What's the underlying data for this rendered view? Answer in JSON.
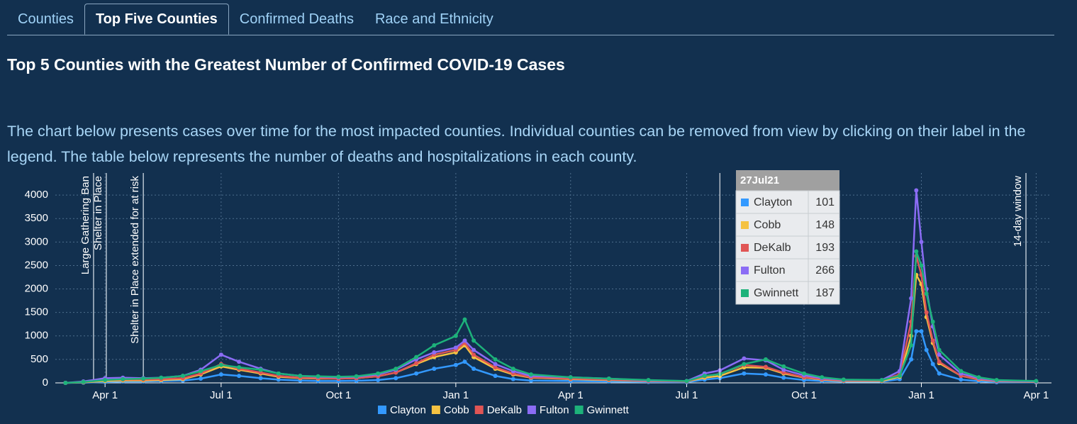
{
  "tabs": [
    "Counties",
    "Top Five Counties",
    "Confirmed Deaths",
    "Race and Ethnicity"
  ],
  "active_tab": 1,
  "heading": "Top 5 Counties with the Greatest Number of Confirmed COVID-19 Cases",
  "description": "The chart below presents cases over time for the most impacted counties. Individual counties can be removed from view by clicking on their label in the legend. The table below represents the number of deaths and hospitalizations in each county.",
  "chart_data": {
    "type": "line",
    "x": [
      "2020-03-01",
      "2020-03-15",
      "2020-04-01",
      "2020-04-15",
      "2020-05-01",
      "2020-05-15",
      "2020-06-01",
      "2020-06-15",
      "2020-07-01",
      "2020-07-15",
      "2020-08-01",
      "2020-08-15",
      "2020-09-01",
      "2020-09-15",
      "2020-10-01",
      "2020-10-15",
      "2020-11-01",
      "2020-11-15",
      "2020-12-01",
      "2020-12-15",
      "2021-01-01",
      "2021-01-08",
      "2021-01-15",
      "2021-02-01",
      "2021-02-15",
      "2021-03-01",
      "2021-04-01",
      "2021-05-01",
      "2021-06-01",
      "2021-07-01",
      "2021-07-15",
      "2021-07-27",
      "2021-08-15",
      "2021-09-01",
      "2021-09-15",
      "2021-10-01",
      "2021-10-15",
      "2021-11-01",
      "2021-12-01",
      "2021-12-15",
      "2021-12-24",
      "2021-12-28",
      "2022-01-01",
      "2022-01-05",
      "2022-01-10",
      "2022-01-15",
      "2022-02-01",
      "2022-02-15",
      "2022-03-01",
      "2022-04-01"
    ],
    "series": [
      {
        "name": "Clayton",
        "color": "#3399ff",
        "values": [
          0,
          5,
          20,
          30,
          30,
          40,
          50,
          90,
          180,
          150,
          100,
          70,
          50,
          40,
          40,
          45,
          60,
          100,
          200,
          300,
          380,
          450,
          300,
          150,
          80,
          50,
          40,
          30,
          20,
          15,
          70,
          101,
          200,
          180,
          110,
          60,
          40,
          25,
          25,
          80,
          500,
          1100,
          1100,
          700,
          400,
          200,
          70,
          35,
          15,
          10
        ]
      },
      {
        "name": "Cobb",
        "color": "#f5c242",
        "values": [
          0,
          10,
          40,
          50,
          50,
          60,
          80,
          180,
          350,
          280,
          200,
          130,
          100,
          90,
          90,
          100,
          140,
          220,
          400,
          550,
          650,
          800,
          550,
          300,
          180,
          110,
          80,
          60,
          35,
          30,
          110,
          148,
          330,
          320,
          200,
          110,
          70,
          40,
          40,
          130,
          1000,
          2300,
          2100,
          1400,
          850,
          420,
          150,
          70,
          35,
          20
        ]
      },
      {
        "name": "DeKalb",
        "color": "#e05555",
        "values": [
          0,
          15,
          60,
          70,
          70,
          80,
          100,
          200,
          400,
          300,
          220,
          150,
          110,
          100,
          90,
          100,
          140,
          220,
          420,
          600,
          700,
          850,
          600,
          330,
          200,
          120,
          90,
          70,
          40,
          30,
          140,
          193,
          380,
          340,
          220,
          120,
          80,
          50,
          50,
          180,
          1300,
          2700,
          2300,
          1500,
          900,
          450,
          150,
          80,
          40,
          25
        ]
      },
      {
        "name": "Fulton",
        "color": "#8b6cf5",
        "values": [
          0,
          30,
          100,
          110,
          100,
          110,
          150,
          280,
          600,
          450,
          300,
          200,
          150,
          130,
          120,
          130,
          180,
          280,
          500,
          650,
          750,
          900,
          700,
          400,
          250,
          150,
          120,
          90,
          50,
          40,
          200,
          266,
          520,
          480,
          280,
          160,
          100,
          60,
          60,
          250,
          1800,
          4100,
          3000,
          2000,
          1200,
          600,
          200,
          100,
          50,
          30
        ]
      },
      {
        "name": "Gwinnett",
        "color": "#1db27a",
        "values": [
          0,
          20,
          60,
          80,
          90,
          110,
          150,
          250,
          380,
          330,
          280,
          200,
          150,
          140,
          130,
          140,
          200,
          300,
          550,
          800,
          1000,
          1350,
          900,
          500,
          300,
          180,
          120,
          90,
          60,
          40,
          150,
          187,
          400,
          500,
          350,
          200,
          120,
          70,
          60,
          150,
          800,
          2800,
          2500,
          1900,
          1300,
          700,
          250,
          120,
          60,
          40
        ]
      }
    ],
    "xlim": [
      "2020-02-22",
      "2022-04-13"
    ],
    "xticks": [
      {
        "value": "2020-04-01",
        "label": "Apr 1"
      },
      {
        "value": "2020-07-01",
        "label": "Jul 1"
      },
      {
        "value": "2020-10-01",
        "label": "Oct 1"
      },
      {
        "value": "2021-01-01",
        "label": "Jan 1"
      },
      {
        "value": "2021-04-01",
        "label": "Apr 1"
      },
      {
        "value": "2021-07-01",
        "label": "Jul 1"
      },
      {
        "value": "2021-10-01",
        "label": "Oct 1"
      },
      {
        "value": "2022-01-01",
        "label": "Jan 1"
      },
      {
        "value": "2022-04-01",
        "label": "Apr 1"
      }
    ],
    "ylim": [
      0,
      4470
    ],
    "yticks": [
      0,
      500,
      1000,
      1500,
      2000,
      2500,
      3000,
      3500,
      4000
    ],
    "grid": true,
    "annotations": [
      {
        "x": "2020-03-23",
        "text": "Large Gathering Ban"
      },
      {
        "x": "2020-04-02",
        "text": "Shelter in Place"
      },
      {
        "x": "2020-05-01",
        "text": "Shelter in Place extended for at risk"
      },
      {
        "x": "2022-03-24",
        "text": "14-day window"
      }
    ],
    "tooltip": {
      "x": "2021-07-27",
      "label": "27Jul21",
      "rows": [
        {
          "name": "Clayton",
          "value": 101
        },
        {
          "name": "Cobb",
          "value": 148
        },
        {
          "name": "DeKalb",
          "value": 193
        },
        {
          "name": "Fulton",
          "value": 266
        },
        {
          "name": "Gwinnett",
          "value": 187
        }
      ]
    },
    "legend": "bottom"
  }
}
